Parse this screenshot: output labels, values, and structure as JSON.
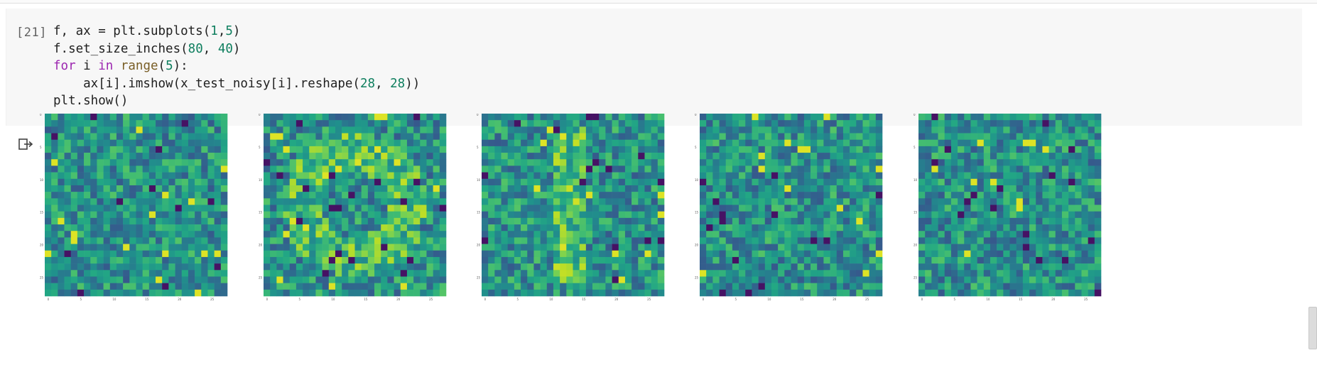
{
  "cell": {
    "execution_count": "[21]",
    "code_lines": [
      [
        {
          "t": "f, ax = plt.subplots("
        },
        {
          "t": "1",
          "c": "num"
        },
        {
          "t": ","
        },
        {
          "t": "5",
          "c": "num"
        },
        {
          "t": ")"
        }
      ],
      [
        {
          "t": "f.set_size_inches("
        },
        {
          "t": "80",
          "c": "num"
        },
        {
          "t": ", "
        },
        {
          "t": "40",
          "c": "num"
        },
        {
          "t": ")"
        }
      ],
      [
        {
          "t": "for",
          "c": "kw"
        },
        {
          "t": " i "
        },
        {
          "t": "in",
          "c": "kw"
        },
        {
          "t": " "
        },
        {
          "t": "range",
          "c": "bi"
        },
        {
          "t": "("
        },
        {
          "t": "5",
          "c": "num"
        },
        {
          "t": "):"
        }
      ],
      [
        {
          "t": "    ax[i].imshow(x_test_noisy[i].reshape("
        },
        {
          "t": "28",
          "c": "num"
        },
        {
          "t": ", "
        },
        {
          "t": "28",
          "c": "num"
        },
        {
          "t": "))"
        }
      ],
      [
        {
          "t": "plt.show()"
        }
      ]
    ]
  },
  "output": {
    "icon": "output-arrow-icon"
  },
  "chart_data": [
    {
      "type": "heatmap",
      "image_size": [
        28,
        28
      ],
      "colormap": "viridis",
      "seed": 1,
      "signal": "faint"
    },
    {
      "type": "heatmap",
      "image_size": [
        28,
        28
      ],
      "colormap": "viridis",
      "seed": 2,
      "signal": "ring"
    },
    {
      "type": "heatmap",
      "image_size": [
        28,
        28
      ],
      "colormap": "viridis",
      "seed": 3,
      "signal": "vertical"
    },
    {
      "type": "heatmap",
      "image_size": [
        28,
        28
      ],
      "colormap": "viridis",
      "seed": 4,
      "signal": "faint"
    },
    {
      "type": "heatmap",
      "image_size": [
        28,
        28
      ],
      "colormap": "viridis",
      "seed": 5,
      "signal": "faint"
    }
  ],
  "axes": {
    "x_ticks": [
      "0",
      "5",
      "10",
      "15",
      "20",
      "25"
    ],
    "y_ticks": [
      "0",
      "5",
      "10",
      "15",
      "20",
      "25"
    ]
  },
  "colors": {
    "code_background": "#f7f7f7",
    "keyword": "#9c27b0",
    "builtin": "#795e26",
    "number": "#0f7f5f"
  }
}
